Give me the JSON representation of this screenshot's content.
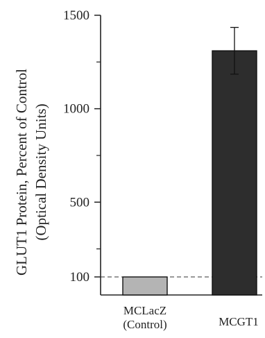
{
  "chart_data": {
    "type": "bar",
    "title": "",
    "ylabel_lines": [
      "GLUT1 Protein, Percent of Control",
      "(Optical Density Units)"
    ],
    "xlabel": "",
    "categories": [
      {
        "lines": [
          "MCLacZ",
          "(Control)"
        ]
      },
      {
        "lines": [
          "MCGT1"
        ]
      }
    ],
    "values": [
      100,
      1310
    ],
    "errors": [
      0,
      125
    ],
    "bar_colors": [
      "#b4b4b4",
      "#2d2d2d"
    ],
    "yticks": [
      100,
      500,
      1000,
      1500
    ],
    "yticks_minor": [
      250,
      750,
      1250
    ],
    "ylim": [
      0,
      1500
    ],
    "reference_line": {
      "value": 100,
      "style": "dashed"
    },
    "grid": false,
    "legend": "none"
  }
}
